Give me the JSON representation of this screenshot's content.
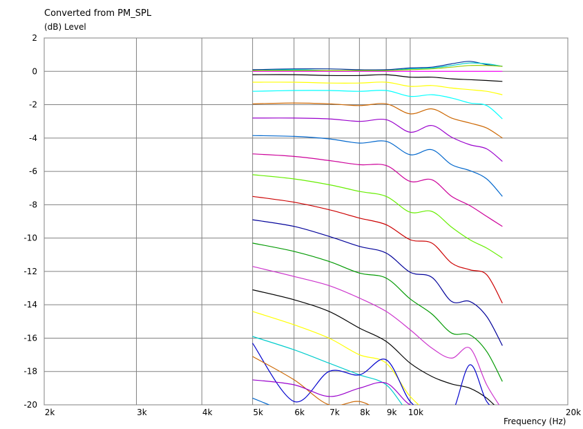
{
  "chart_data": {
    "type": "line",
    "title": "Converted from PM_SPL",
    "ylabel": "(dB)  Level",
    "xlabel": "Frequency  (Hz)",
    "xscale": "log",
    "xlim": [
      2000,
      20000
    ],
    "ylim": [
      -20,
      2
    ],
    "grid": true,
    "legend": "none",
    "yticks": [
      2,
      0,
      -2,
      -4,
      -6,
      -8,
      -10,
      -12,
      -14,
      -16,
      -18,
      -20
    ],
    "ytick_labels": [
      "2",
      "0",
      "-2",
      "-4",
      "-6",
      "-8",
      "-10",
      "-12",
      "-14",
      "-16",
      "-18",
      "-20"
    ],
    "xticks": [
      2000,
      3000,
      4000,
      5000,
      6000,
      7000,
      8000,
      9000,
      10000,
      20000
    ],
    "xtick_labels": [
      "2k",
      "3k",
      "4k",
      "5k",
      "6k",
      "7k",
      "8k",
      "9k",
      "10k",
      "20k"
    ],
    "x": [
      5000,
      6000,
      7000,
      8000,
      9000,
      10000,
      11000,
      12000,
      13000,
      14000,
      15000
    ],
    "series": [
      {
        "color": "#ff00ff",
        "values": [
          0.0,
          0.0,
          0.0,
          0.0,
          0.0,
          0.0,
          0.0,
          0.0,
          0.0,
          0.0,
          0.0
        ]
      },
      {
        "color": "#003399",
        "values": [
          0.1,
          0.15,
          0.15,
          0.1,
          0.1,
          0.2,
          0.25,
          0.45,
          0.6,
          0.4,
          0.3
        ]
      },
      {
        "color": "#00cccc",
        "values": [
          0.05,
          0.1,
          0.05,
          0.05,
          0.05,
          0.15,
          0.2,
          0.35,
          0.5,
          0.45,
          0.3
        ]
      },
      {
        "color": "#99cc00",
        "values": [
          0.05,
          0.05,
          0.05,
          0.05,
          0.05,
          0.1,
          0.15,
          0.25,
          0.35,
          0.35,
          0.3
        ]
      },
      {
        "color": "#000000",
        "values": [
          -0.2,
          -0.2,
          -0.25,
          -0.25,
          -0.2,
          -0.35,
          -0.35,
          -0.45,
          -0.5,
          -0.55,
          -0.6
        ]
      },
      {
        "color": "#ffff00",
        "values": [
          -0.65,
          -0.65,
          -0.7,
          -0.7,
          -0.65,
          -0.9,
          -0.85,
          -1.0,
          -1.1,
          -1.2,
          -1.4
        ]
      },
      {
        "color": "#00ffff",
        "values": [
          -1.2,
          -1.15,
          -1.15,
          -1.2,
          -1.15,
          -1.5,
          -1.4,
          -1.6,
          -1.9,
          -2.05,
          -2.85
        ]
      },
      {
        "color": "#cc6600",
        "values": [
          -1.95,
          -1.9,
          -1.95,
          -2.05,
          -1.95,
          -2.55,
          -2.25,
          -2.8,
          -3.1,
          -3.4,
          -4.0
        ]
      },
      {
        "color": "#9900cc",
        "values": [
          -2.8,
          -2.8,
          -2.85,
          -3.0,
          -2.9,
          -3.65,
          -3.25,
          -3.95,
          -4.4,
          -4.65,
          -5.4
        ]
      },
      {
        "color": "#0066cc",
        "values": [
          -3.85,
          -3.9,
          -4.05,
          -4.3,
          -4.2,
          -5.0,
          -4.7,
          -5.6,
          -5.95,
          -6.45,
          -7.5
        ]
      },
      {
        "color": "#cc0099",
        "values": [
          -4.95,
          -5.1,
          -5.35,
          -5.6,
          -5.65,
          -6.6,
          -6.5,
          -7.5,
          -8.05,
          -8.7,
          -9.3
        ]
      },
      {
        "color": "#66ee00",
        "values": [
          -6.2,
          -6.45,
          -6.8,
          -7.2,
          -7.5,
          -8.45,
          -8.4,
          -9.35,
          -10.1,
          -10.6,
          -11.2
        ]
      },
      {
        "color": "#cc0000",
        "values": [
          -7.5,
          -7.85,
          -8.3,
          -8.8,
          -9.2,
          -10.1,
          -10.3,
          -11.5,
          -11.9,
          -12.2,
          -13.9
        ]
      },
      {
        "color": "#000099",
        "values": [
          -8.9,
          -9.3,
          -9.9,
          -10.5,
          -10.9,
          -12.05,
          -12.35,
          -13.8,
          -13.8,
          -14.7,
          -16.45
        ]
      },
      {
        "color": "#009900",
        "values": [
          -10.3,
          -10.8,
          -11.4,
          -12.1,
          -12.4,
          -13.65,
          -14.55,
          -15.7,
          -15.8,
          -16.8,
          -18.6
        ]
      },
      {
        "color": "#cc33cc",
        "values": [
          -11.7,
          -12.3,
          -12.85,
          -13.6,
          -14.4,
          -15.5,
          -16.6,
          -17.2,
          -16.6,
          -18.8,
          -20.3
        ]
      },
      {
        "color": "#000000",
        "values": [
          -13.1,
          -13.7,
          -14.4,
          -15.4,
          -16.2,
          -17.5,
          -18.3,
          -18.75,
          -19.0,
          -19.6,
          -20.5
        ]
      },
      {
        "color": "#ffff00",
        "values": [
          -14.4,
          -15.2,
          -16.0,
          -17.0,
          -17.5,
          -19.5,
          -20.5,
          -20.5,
          -20.5,
          -20.5,
          -20.5
        ]
      },
      {
        "color": "#00cccc",
        "values": [
          -15.9,
          -16.7,
          -17.5,
          -18.2,
          -18.8,
          -20.5,
          -20.5,
          -20.5,
          -20.5,
          -20.5,
          -20.5
        ]
      },
      {
        "color": "#0000cc",
        "values": [
          -16.3,
          -19.8,
          -18.0,
          -18.2,
          -17.3,
          -19.8,
          -20.5,
          -20.5,
          -17.6,
          -19.8,
          -20.5
        ]
      },
      {
        "color": "#cc6600",
        "values": [
          -17.1,
          -18.5,
          -20.0,
          -19.8,
          -20.5,
          -20.5,
          -20.5,
          -20.5,
          -20.5,
          -20.5,
          -20.5
        ]
      },
      {
        "color": "#9900cc",
        "values": [
          -18.5,
          -18.8,
          -19.5,
          -19.0,
          -18.7,
          -20.0,
          -20.1,
          -20.5,
          -20.5,
          -20.5,
          -20.5
        ]
      },
      {
        "color": "#0066cc",
        "values": [
          -19.6,
          -20.5,
          -20.5,
          -20.5,
          -20.5,
          -20.5,
          -20.5,
          -20.5,
          -20.5,
          -20.5,
          -20.5
        ]
      }
    ]
  }
}
